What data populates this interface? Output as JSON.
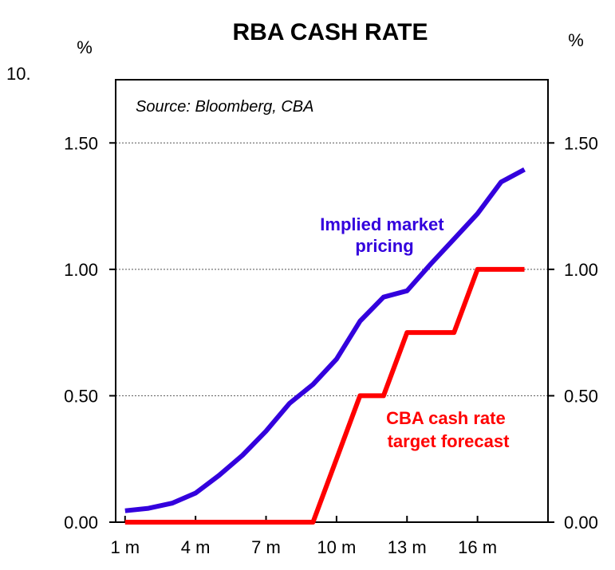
{
  "chart_data": {
    "type": "line",
    "title": "RBA CASH RATE",
    "source": "Source: Bloomberg, CBA",
    "corner_text": "10.",
    "ylabel_left": "%",
    "ylabel_right": "%",
    "ylim": [
      0,
      1.75
    ],
    "yticks": [
      "0.00",
      "0.50",
      "1.00",
      "1.50"
    ],
    "ytick_values": [
      0,
      0.5,
      1.0,
      1.5
    ],
    "xlim": [
      0.6,
      19.0
    ],
    "xticks": [
      "1 m",
      "4 m",
      "7 m",
      "10 m",
      "13 m",
      "16 m"
    ],
    "xtick_values": [
      1,
      4,
      7,
      10,
      13,
      16
    ],
    "grid": true,
    "series": [
      {
        "name": "Implied market pricing",
        "label_lines": [
          "Implied market",
          "pricing"
        ],
        "color": "#3300dd",
        "x": [
          1,
          2,
          3,
          4,
          5,
          6,
          7,
          8,
          9,
          10,
          11,
          12,
          13,
          14,
          15,
          16,
          17,
          18
        ],
        "y": [
          0.045,
          0.055,
          0.075,
          0.115,
          0.185,
          0.265,
          0.36,
          0.47,
          0.545,
          0.645,
          0.795,
          0.89,
          0.915,
          1.02,
          1.12,
          1.22,
          1.345,
          1.395
        ]
      },
      {
        "name": "CBA cash rate target forecast",
        "label_lines": [
          "CBA cash rate",
          "target forecast"
        ],
        "color": "#ff0000",
        "x": [
          1,
          2,
          3,
          4,
          5,
          6,
          7,
          8,
          9,
          10,
          11,
          12,
          13,
          14,
          15,
          16,
          17,
          18
        ],
        "y": [
          0,
          0,
          0,
          0,
          0,
          0,
          0,
          0,
          0,
          0.25,
          0.5,
          0.5,
          0.75,
          0.75,
          0.75,
          1.0,
          1.0,
          1.0
        ]
      }
    ]
  }
}
